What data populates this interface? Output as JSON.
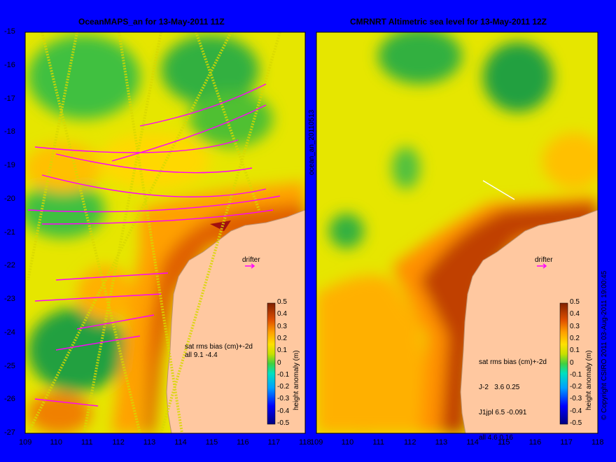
{
  "chart_data": [
    {
      "type": "heatmap",
      "title": "OceanMAPS_an for 13-May-2011 11Z",
      "xlim": [
        109,
        118
      ],
      "ylim": [
        -27,
        -15
      ],
      "xticks": [
        "109",
        "110",
        "111",
        "112",
        "113",
        "114",
        "115",
        "116",
        "117",
        "118"
      ],
      "yticks": [
        "-15",
        "-16",
        "-17",
        "-18",
        "-19",
        "-20",
        "-21",
        "-22",
        "-23",
        "-24",
        "-25",
        "-26",
        "-27"
      ],
      "colorbar": {
        "label": "height anomaly (m)",
        "ticks": [
          "0.5",
          "0.4",
          "0.3",
          "0.2",
          "0.1",
          "0",
          "-0.1",
          "-0.2",
          "-0.3",
          "-0.4",
          "-0.5"
        ],
        "range": [
          -0.5,
          0.5
        ]
      },
      "stats_header": "sat rms bias (cm)+-2d",
      "stats_lines": [
        "all 9.1 -4.4"
      ],
      "drifter_label": "drifter",
      "side_label": "ocean_an_20110513"
    },
    {
      "type": "heatmap",
      "title": "CMRNRT Altimetric sea level  for 13-May-2011 12Z",
      "xlim": [
        109,
        118
      ],
      "ylim": [
        -27,
        -15
      ],
      "xticks": [
        "109",
        "110",
        "111",
        "112",
        "113",
        "114",
        "115",
        "116",
        "117",
        "118"
      ],
      "colorbar": {
        "label": "height anomaly (m)",
        "ticks": [
          "0.5",
          "0.4",
          "0.3",
          "0.2",
          "0.1",
          "0",
          "-0.1",
          "-0.2",
          "-0.3",
          "-0.4",
          "-0.5"
        ],
        "range": [
          -0.5,
          0.5
        ]
      },
      "stats_header": "sat rms bias (cm)+-2d",
      "stats_lines": [
        "J-2   3.6 0.25",
        "J1jpl 6.5 -0.091",
        "all 4.6 0.16"
      ],
      "drifter_label": "drifter",
      "copyright": "© Copyright CSIRO 2011  03-Aug-2011 19:00:45"
    }
  ]
}
